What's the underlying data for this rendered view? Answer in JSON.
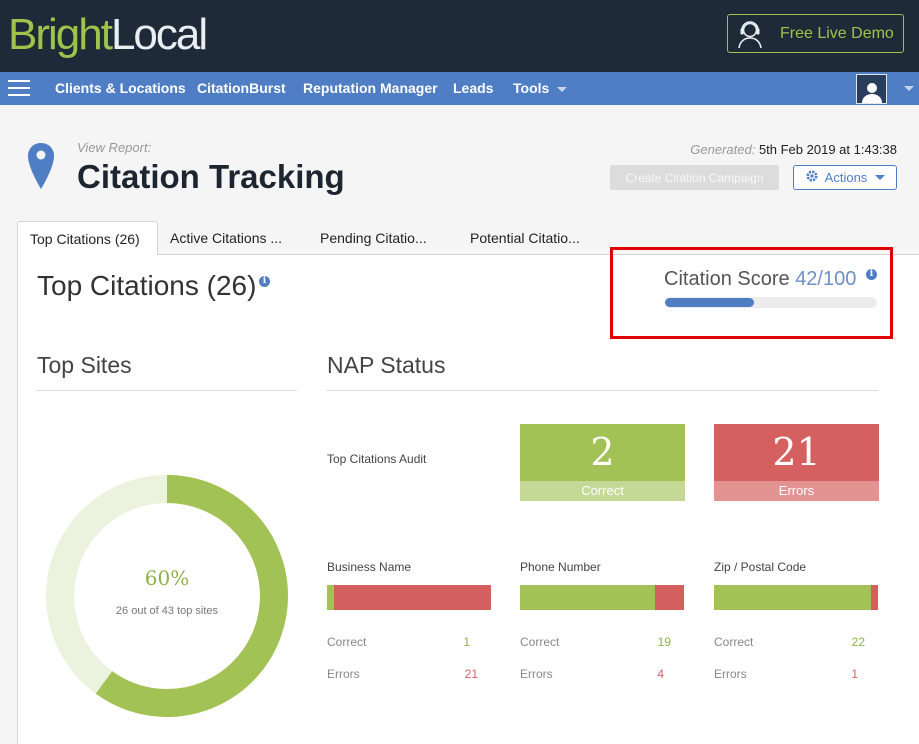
{
  "header": {
    "logo_bright": "Bright",
    "logo_local": "Local",
    "demo_label": "Free Live Demo"
  },
  "nav": {
    "items": [
      "Clients & Locations",
      "CitationBurst",
      "Reputation Manager",
      "Leads",
      "Tools"
    ]
  },
  "page": {
    "view_report": "View Report:",
    "title": "Citation Tracking",
    "generated_label": "Generated:",
    "generated_value": "5th Feb 2019 at 1:43:38",
    "create_button": "Create Citation Campaign",
    "actions_button": "Actions"
  },
  "tabs": [
    "Top Citations (26)",
    "Active Citations ...",
    "Pending Citatio...",
    "Potential Citatio..."
  ],
  "section": {
    "title": "Top Citations (26)"
  },
  "score": {
    "label": "Citation Score",
    "value": "42/100",
    "fraction": 0.42
  },
  "top_sites": {
    "heading": "Top Sites",
    "percent": "60%",
    "fraction": 0.6,
    "subtitle": "26 out of 43 top sites"
  },
  "nap": {
    "heading": "NAP Status",
    "audit_label": "Top Citations Audit",
    "correct_count": "2",
    "correct_label": "Correct",
    "errors_count": "21",
    "errors_label": "Errors",
    "metrics": [
      {
        "title": "Business Name",
        "correct_label": "Correct",
        "correct": "1",
        "errors_label": "Errors",
        "errors": "21",
        "correct_fraction": 0.043
      },
      {
        "title": "Phone Number",
        "correct_label": "Correct",
        "correct": "19",
        "errors_label": "Errors",
        "errors": "4",
        "correct_fraction": 0.826
      },
      {
        "title": "Zip / Postal Code",
        "correct_label": "Correct",
        "correct": "22",
        "errors_label": "Errors",
        "errors": "1",
        "correct_fraction": 0.957
      }
    ]
  },
  "colors": {
    "brand_green": "#9dc34a",
    "nav_blue": "#4f7ec4",
    "error_red": "#d45f5f",
    "highlight_red": "#e00000"
  }
}
